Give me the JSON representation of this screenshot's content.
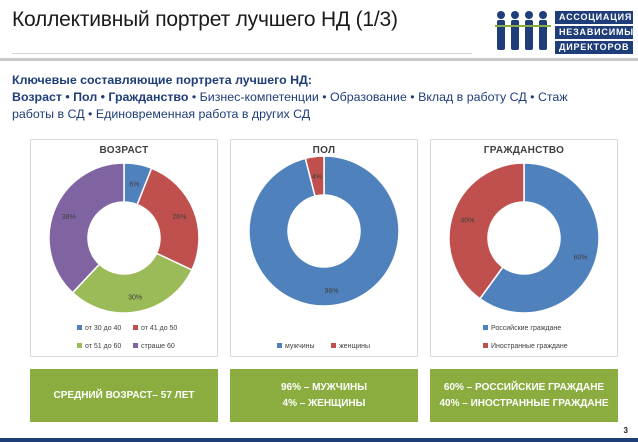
{
  "header": {
    "title": "Коллективный портрет лучшего НД (1/3)",
    "logo_lines": [
      "АССОЦИАЦИЯ",
      "НЕЗАВИСИМЫХ",
      "ДИРЕКТОРОВ"
    ]
  },
  "intro": {
    "heading": "Ключевые составляющие портрета лучшего НД:",
    "bold_part": "Возраст • Пол • Гражданство",
    "rest": " • Бизнес-компетенции • Образование • Вклад в работу СД • Стаж работы в СД • Единовременная работа в других СД"
  },
  "colors": {
    "blue": "#4f81bd",
    "red": "#c0504d",
    "green": "#9bbb59",
    "purple": "#8064a2",
    "accent_green": "#8bad3f",
    "brand_navy": "#1f3d79"
  },
  "chart_data": [
    {
      "type": "pie",
      "title": "ВОЗРАСТ",
      "categories": [
        "от 30 до 40",
        "от 41 до 50",
        "от 51 до 60",
        "страше 60"
      ],
      "values": [
        6,
        26,
        30,
        38
      ],
      "labels": [
        "6%",
        "26%",
        "30%",
        "38%"
      ],
      "colors": [
        "#4f81bd",
        "#c0504d",
        "#9bbb59",
        "#8064a2"
      ],
      "legend_position": "bottom"
    },
    {
      "type": "pie",
      "title": "ПОЛ",
      "categories": [
        "мужчины",
        "женщины"
      ],
      "values": [
        96,
        4
      ],
      "labels": [
        "96%",
        "4%"
      ],
      "colors": [
        "#4f81bd",
        "#c0504d"
      ],
      "legend_position": "bottom"
    },
    {
      "type": "pie",
      "title": "ГРАЖДАНСТВО",
      "categories": [
        "Российские граждане",
        "Иностранные граждане"
      ],
      "values": [
        60,
        40
      ],
      "labels": [
        "60%",
        "40%"
      ],
      "colors": [
        "#4f81bd",
        "#c0504d"
      ],
      "legend_position": "bottom"
    }
  ],
  "summary": {
    "age": [
      "СРЕДНИЙ ВОЗРАСТ– 57 ЛЕТ"
    ],
    "gender": [
      "96% – МУЖЧИНЫ",
      "4% – ЖЕНЩИНЫ"
    ],
    "citizenship": [
      "60% –  РОССИЙСКИЕ ГРАЖДАНЕ",
      "40% – ИНОСТРАННЫЕ ГРАЖДАНЕ"
    ]
  },
  "page_number": "3"
}
